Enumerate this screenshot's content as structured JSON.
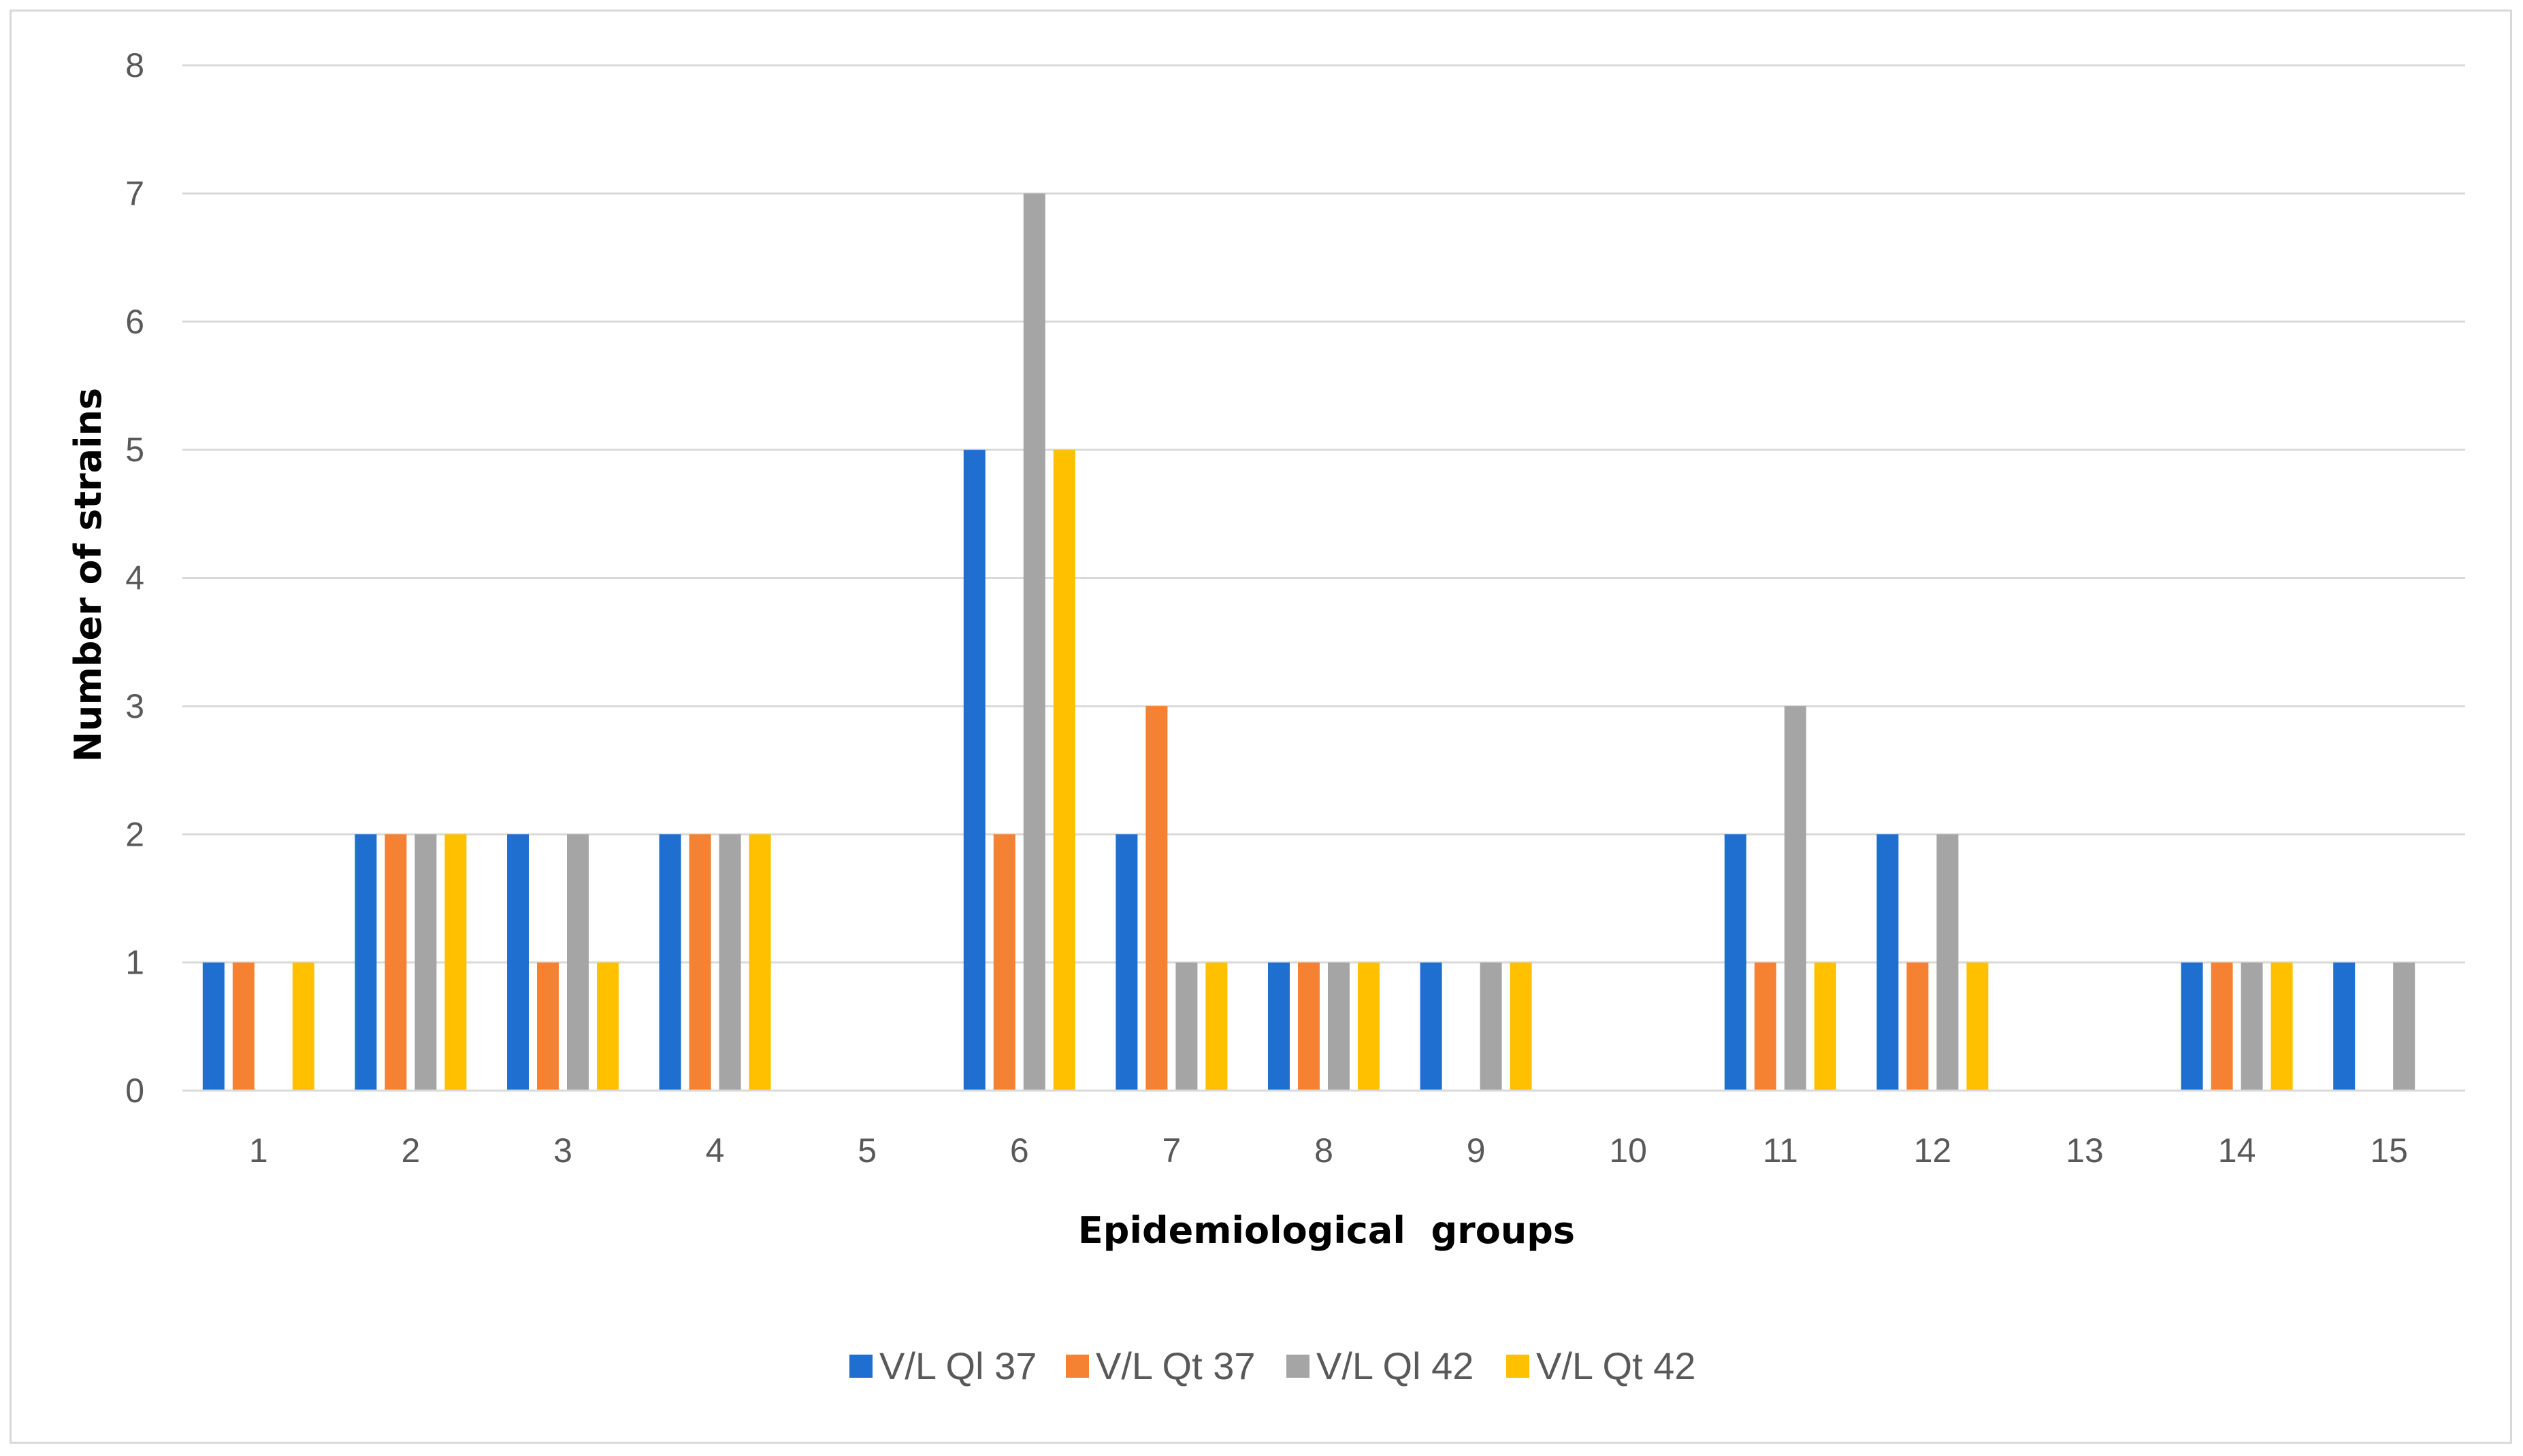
{
  "chart_data": {
    "type": "bar",
    "title": "",
    "xlabel": "Epidemiological  groups",
    "ylabel": "Number of strains",
    "ylim": [
      0,
      8
    ],
    "yticks": [
      0,
      1,
      2,
      3,
      4,
      5,
      6,
      7,
      8
    ],
    "grid": true,
    "legend_position": "bottom",
    "categories": [
      "1",
      "2",
      "3",
      "4",
      "5",
      "6",
      "7",
      "8",
      "9",
      "10",
      "11",
      "12",
      "13",
      "14",
      "15"
    ],
    "series": [
      {
        "name": "V/L Ql 37",
        "color": "#1f6fd1",
        "values": [
          1,
          2,
          2,
          2,
          0,
          5,
          2,
          1,
          1,
          0,
          2,
          2,
          0,
          1,
          1
        ]
      },
      {
        "name": "V/L Qt 37",
        "color": "#f58232",
        "values": [
          1,
          2,
          1,
          2,
          0,
          2,
          3,
          1,
          0,
          0,
          1,
          1,
          0,
          1,
          0
        ]
      },
      {
        "name": "V/L Ql 42",
        "color": "#a5a5a5",
        "values": [
          0,
          2,
          2,
          2,
          0,
          7,
          1,
          1,
          1,
          0,
          3,
          2,
          0,
          1,
          1
        ]
      },
      {
        "name": "V/L Qt 42",
        "color": "#ffc000",
        "values": [
          1,
          2,
          1,
          2,
          0,
          5,
          1,
          1,
          1,
          0,
          1,
          1,
          0,
          1,
          0
        ]
      }
    ]
  }
}
